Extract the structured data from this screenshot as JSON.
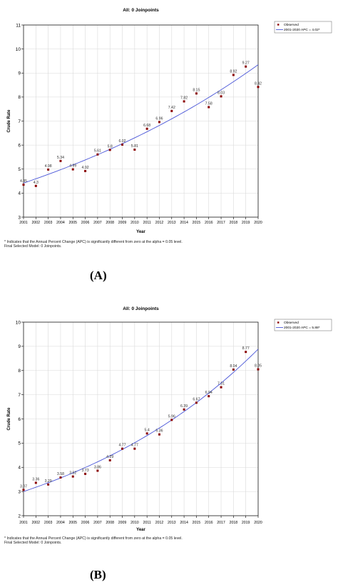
{
  "panels": [
    {
      "label": "(A)",
      "footnote_1": "* Indicates that the Annual Percent Change (APC) is significantly different from zero at the alpha = 0.05 level.",
      "footnote_2": "Final Selected Model: 0 Joinpoints."
    },
    {
      "label": "(B)",
      "footnote_1": "* Indicates that the Annual Percent Change (APC) is significantly different from zero at the alpha = 0.05 level.",
      "footnote_2": "Final Selected Model: 0 Joinpoints."
    }
  ],
  "colors": {
    "observed": "#8b0000",
    "model": "#4a56d8",
    "grid": "#d9d9d9",
    "axis": "#000000"
  },
  "chart_data": [
    {
      "type": "scatter",
      "title": "All: 0 Joinpoints",
      "xlabel": "Year",
      "ylabel": "Crude Rate",
      "x": [
        2001,
        2002,
        2003,
        2004,
        2005,
        2006,
        2007,
        2008,
        2009,
        2010,
        2011,
        2012,
        2013,
        2014,
        2015,
        2016,
        2017,
        2018,
        2019,
        2020
      ],
      "series": [
        {
          "name": "Observed",
          "values": [
            4.35,
            4.3,
            4.98,
            5.34,
            4.99,
            4.92,
            5.61,
            5.8,
            6.02,
            5.81,
            6.68,
            6.96,
            7.42,
            7.82,
            8.15,
            7.58,
            8.03,
            8.92,
            9.27,
            8.42
          ],
          "labels": [
            "4.35",
            "4.3",
            "4.98",
            "5.34",
            "4.99",
            "4.92",
            "5.61",
            "5.8",
            "6.02",
            "5.81",
            "6.68",
            "6.96",
            "7.42",
            "7.82",
            "8.15",
            "7.58",
            "8.03",
            "8.92",
            "9.27",
            "8.42"
          ]
        },
        {
          "name": "2001-2020 APC = 4.02*",
          "model": "exponential",
          "start": 4.42,
          "apc": 4.02
        }
      ],
      "xlim": [
        2001,
        2020
      ],
      "ylim": [
        3,
        11
      ],
      "yticks": [
        3,
        4,
        5,
        6,
        7,
        8,
        9,
        10,
        11
      ],
      "grid": true,
      "legend": "top-right"
    },
    {
      "type": "scatter",
      "title": "All: 0 Joinpoints",
      "xlabel": "Year",
      "ylabel": "Crude Rate",
      "x": [
        2001,
        2002,
        2003,
        2004,
        2005,
        2006,
        2007,
        2008,
        2009,
        2010,
        2011,
        2012,
        2013,
        2014,
        2015,
        2016,
        2017,
        2018,
        2019,
        2020
      ],
      "series": [
        {
          "name": "Observed",
          "values": [
            3.07,
            3.36,
            3.29,
            3.58,
            3.62,
            3.73,
            3.86,
            4.29,
            4.77,
            4.77,
            5.4,
            5.36,
            5.96,
            6.39,
            6.67,
            6.94,
            7.31,
            8.04,
            8.77,
            8.05
          ],
          "labels": [
            "3.07",
            "3.36",
            "3.29",
            "3.58",
            "3.62",
            "3.73",
            "3.86",
            "4.29",
            "4.77",
            "4.77",
            "5.4",
            "5.36",
            "5.96",
            "6.39",
            "6.67",
            "6.94",
            "7.31",
            "8.04",
            "8.77",
            "8.05"
          ]
        },
        {
          "name": "2001-2020 APC = 5.88*",
          "model": "exponential",
          "start": 3.0,
          "apc": 5.88
        }
      ],
      "xlim": [
        2001,
        2020
      ],
      "ylim": [
        2,
        10
      ],
      "yticks": [
        2,
        3,
        4,
        5,
        6,
        7,
        8,
        9,
        10
      ],
      "grid": true,
      "legend": "top-right"
    }
  ]
}
